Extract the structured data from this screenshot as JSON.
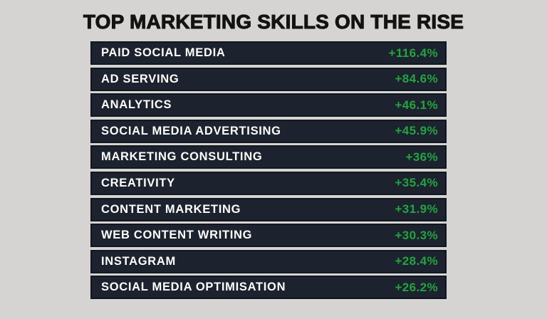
{
  "title": "TOP MARKETING SKILLS ON THE RISE",
  "colors": {
    "page_bg": "#d5d4d2",
    "bar_fill": "#1c222e",
    "bar_border": "#11161f",
    "label_text": "#ffffff",
    "value_text": "#22a440",
    "title_text": "#131313"
  },
  "chart_data": {
    "type": "bar",
    "orientation": "horizontal",
    "title": "TOP MARKETING SKILLS ON THE RISE",
    "grid": false,
    "legend_position": "none",
    "categories": [
      "PAID SOCIAL MEDIA",
      "AD SERVING",
      "ANALYTICS",
      "SOCIAL MEDIA ADVERTISING",
      "MARKETING CONSULTING",
      "CREATIVITY",
      "CONTENT MARKETING",
      "WEB CONTENT WRITING",
      "INSTAGRAM",
      "SOCIAL MEDIA OPTIMISATION"
    ],
    "values": [
      116.4,
      84.6,
      46.1,
      45.9,
      36,
      35.4,
      31.9,
      30.3,
      28.4,
      26.2
    ],
    "value_labels": [
      "+116.4%",
      "+84.6%",
      "+46.1%",
      "+45.9%",
      "+36%",
      "+35.4%",
      "+31.9%",
      "+30.3%",
      "+28.4%",
      "+26.2%"
    ],
    "value_unit": "%",
    "bar_style": "equal-width dark rows; label left in white, value right-aligned in green"
  }
}
